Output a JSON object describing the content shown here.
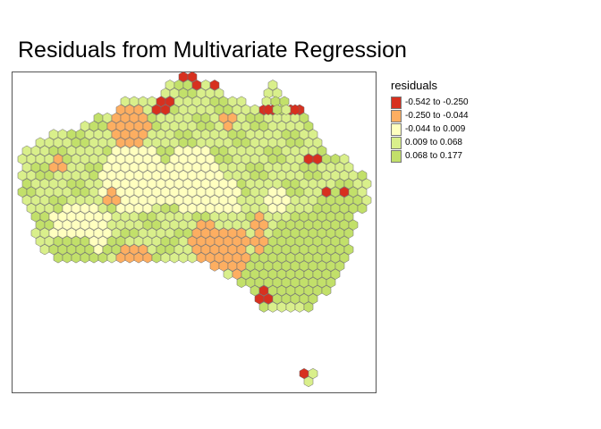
{
  "title": "Residuals from Multivariate Regression",
  "legend": {
    "title": "residuals",
    "items": [
      {
        "label": "-0.542 to -0.250",
        "color": "#d7301f"
      },
      {
        "label": "-0.250 to -0.044",
        "color": "#fdae61"
      },
      {
        "label": "-0.044 to 0.009",
        "color": "#ffffbf"
      },
      {
        "label": "0.009 to 0.068",
        "color": "#d9ef8b"
      },
      {
        "label": "0.068 to 0.177",
        "color": "#c2e06a"
      }
    ]
  }
}
